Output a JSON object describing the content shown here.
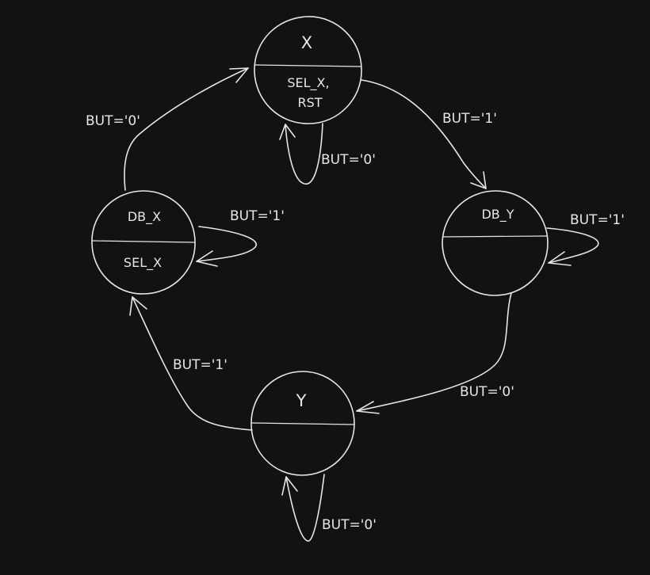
{
  "states": {
    "x": {
      "name": "X",
      "actions": [
        "SEL_X,",
        "RST"
      ]
    },
    "db_y": {
      "name": "DB_Y",
      "actions": []
    },
    "y": {
      "name": "Y",
      "actions": []
    },
    "db_x": {
      "name": "DB_X",
      "actions": [
        "SEL_X"
      ]
    }
  },
  "transitions": {
    "x_self": "BUT='0'",
    "x_to_db_y": "BUT='1'",
    "db_y_self": "BUT='1'",
    "db_y_to_y": "BUT='0'",
    "y_self": "BUT='0'",
    "y_to_db_x": "BUT='1'",
    "db_x_self": "BUT='1'",
    "db_x_to_x": "BUT='0'"
  }
}
